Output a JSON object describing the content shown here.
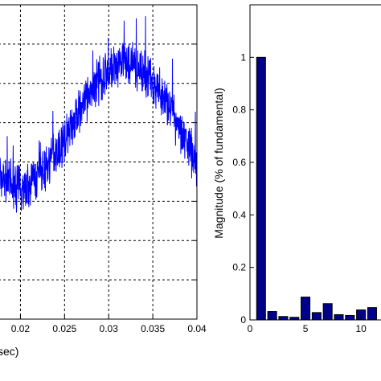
{
  "chart_data": [
    {
      "type": "line",
      "x_tick_labels": [
        "0.02",
        "0.025",
        "0.03",
        "0.035",
        "0.04"
      ],
      "x_ticks": [
        0.02,
        0.025,
        0.03,
        0.035,
        0.04
      ],
      "xlim": [
        0.0175,
        0.04
      ],
      "ylim": [
        -1,
        1
      ],
      "xlabel_visible": "sec)",
      "grid": true,
      "series": [
        {
          "color": "#0000ff",
          "noisy": true,
          "x": [
            0.0175,
            0.019,
            0.0205,
            0.022,
            0.0235,
            0.025,
            0.0265,
            0.028,
            0.0295,
            0.031,
            0.0325,
            0.034,
            0.0355,
            0.037,
            0.0385,
            0.04
          ],
          "y": [
            -0.08,
            -0.15,
            -0.16,
            -0.1,
            0.02,
            0.14,
            0.3,
            0.45,
            0.55,
            0.6,
            0.62,
            0.57,
            0.47,
            0.33,
            0.17,
            -0.02
          ]
        }
      ]
    },
    {
      "type": "bar",
      "ylabel": "Magnitude (% of fundamental)",
      "x_tick_labels": [
        "0",
        "5",
        "10"
      ],
      "x_ticks": [
        0,
        5,
        10
      ],
      "y_tick_labels": [
        "0",
        "0.2",
        "0.4",
        "0.6",
        "0.8",
        "1"
      ],
      "y_ticks": [
        0,
        0.2,
        0.4,
        0.6,
        0.8,
        1
      ],
      "xlim": [
        0,
        11.8
      ],
      "ylim": [
        0,
        1.2
      ],
      "bar_color": "#00008b",
      "categories": [
        1,
        2,
        3,
        4,
        5,
        6,
        7,
        8,
        9,
        10,
        11
      ],
      "values": [
        1.0,
        0.032,
        0.013,
        0.01,
        0.087,
        0.028,
        0.062,
        0.02,
        0.017,
        0.038,
        0.047
      ]
    }
  ]
}
